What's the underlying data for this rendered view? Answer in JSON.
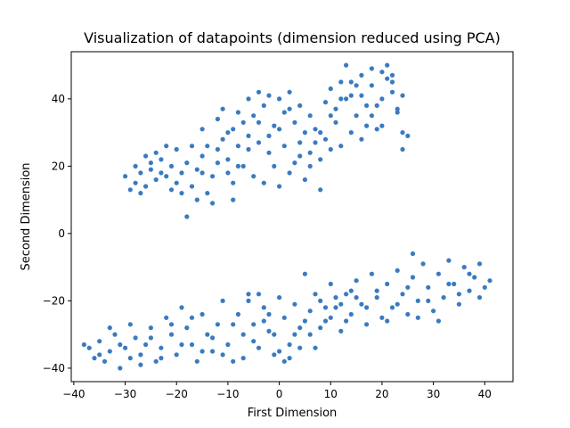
{
  "chart_data": {
    "type": "scatter",
    "title": "Visualization of datapoints (dimension reduced using PCA)",
    "xlabel": "First Dimension",
    "ylabel": "Second Dimension",
    "xlim": [
      -40.5,
      45.5
    ],
    "ylim": [
      -44,
      54
    ],
    "xticks": [
      -40,
      -30,
      -20,
      -10,
      0,
      10,
      20,
      30,
      40
    ],
    "yticks": [
      -40,
      -20,
      0,
      20,
      40
    ],
    "xtick_labels": [
      "−40",
      "−30",
      "−20",
      "−10",
      "0",
      "10",
      "20",
      "30",
      "40"
    ],
    "ytick_labels": [
      "−40",
      "−20",
      "0",
      "20",
      "40"
    ],
    "grid": false,
    "marker_color": "#3a7bbf",
    "series": [
      {
        "values": [
          [
            -30,
            17
          ],
          [
            -29,
            13
          ],
          [
            -28,
            15
          ],
          [
            -27,
            18
          ],
          [
            -26,
            14
          ],
          [
            -25,
            19
          ],
          [
            -24,
            16
          ],
          [
            -23,
            22
          ],
          [
            -22,
            17
          ],
          [
            -21,
            20
          ],
          [
            -20,
            15
          ],
          [
            -19,
            18
          ],
          [
            -18,
            21
          ],
          [
            -17,
            14
          ],
          [
            -16,
            19
          ],
          [
            -15,
            23
          ],
          [
            -14,
            12
          ],
          [
            -13,
            17
          ],
          [
            -12,
            25
          ],
          [
            -11,
            28
          ],
          [
            -10,
            22
          ],
          [
            -9,
            31
          ],
          [
            -8,
            26
          ],
          [
            -7,
            33
          ],
          [
            -6,
            29
          ],
          [
            -5,
            35
          ],
          [
            -4,
            27
          ],
          [
            -3,
            38
          ],
          [
            -2,
            24
          ],
          [
            -1,
            32
          ],
          [
            0,
            40
          ],
          [
            1,
            36
          ],
          [
            2,
            42
          ],
          [
            3,
            33
          ],
          [
            4,
            38
          ],
          [
            5,
            30
          ],
          [
            6,
            35
          ],
          [
            7,
            27
          ],
          [
            8,
            22
          ],
          [
            9,
            39
          ],
          [
            10,
            43
          ],
          [
            11,
            37
          ],
          [
            12,
            45
          ],
          [
            13,
            50
          ],
          [
            14,
            41
          ],
          [
            15,
            35
          ],
          [
            16,
            47
          ],
          [
            17,
            32
          ],
          [
            18,
            44
          ],
          [
            19,
            38
          ],
          [
            20,
            48
          ],
          [
            21,
            46
          ],
          [
            22,
            42
          ],
          [
            23,
            36
          ],
          [
            24,
            30
          ],
          [
            25,
            29
          ],
          [
            -28,
            20
          ],
          [
            -26,
            23
          ],
          [
            -24,
            24
          ],
          [
            -22,
            26
          ],
          [
            -20,
            25
          ],
          [
            -19,
            12
          ],
          [
            -18,
            5
          ],
          [
            -16,
            10
          ],
          [
            -15,
            31
          ],
          [
            -14,
            26
          ],
          [
            -13,
            9
          ],
          [
            -12,
            21
          ],
          [
            -11,
            37
          ],
          [
            -10,
            18
          ],
          [
            -9,
            15
          ],
          [
            -8,
            36
          ],
          [
            -7,
            20
          ],
          [
            -6,
            40
          ],
          [
            -5,
            17
          ],
          [
            -4,
            33
          ],
          [
            -3,
            15
          ],
          [
            -2,
            41
          ],
          [
            -1,
            20
          ],
          [
            0,
            14
          ],
          [
            1,
            26
          ],
          [
            2,
            18
          ],
          [
            3,
            21
          ],
          [
            4,
            27
          ],
          [
            5,
            16
          ],
          [
            6,
            24
          ],
          [
            7,
            31
          ],
          [
            8,
            13
          ],
          [
            9,
            28
          ],
          [
            10,
            25
          ],
          [
            11,
            33
          ],
          [
            12,
            26
          ],
          [
            13,
            40
          ],
          [
            14,
            30
          ],
          [
            15,
            44
          ],
          [
            16,
            28
          ],
          [
            17,
            38
          ],
          [
            18,
            49
          ],
          [
            19,
            31
          ],
          [
            20,
            40
          ],
          [
            21,
            50
          ],
          [
            22,
            45
          ],
          [
            23,
            37
          ],
          [
            24,
            41
          ],
          [
            -27,
            12
          ],
          [
            -25,
            21
          ],
          [
            -23,
            18
          ],
          [
            -21,
            13
          ],
          [
            -17,
            26
          ],
          [
            -15,
            18
          ],
          [
            -12,
            34
          ],
          [
            -10,
            30
          ],
          [
            -8,
            20
          ],
          [
            -6,
            25
          ],
          [
            -4,
            42
          ],
          [
            -2,
            29
          ],
          [
            0,
            31
          ],
          [
            2,
            37
          ],
          [
            4,
            23
          ],
          [
            6,
            20
          ],
          [
            8,
            30
          ],
          [
            10,
            35
          ],
          [
            12,
            40
          ],
          [
            14,
            45
          ],
          [
            16,
            41
          ],
          [
            18,
            35
          ],
          [
            20,
            32
          ],
          [
            22,
            47
          ],
          [
            24,
            25
          ],
          [
            -9,
            10
          ],
          [
            -37,
            -34
          ],
          [
            -36,
            -37
          ],
          [
            -35,
            -32
          ],
          [
            -34,
            -38
          ],
          [
            -33,
            -35
          ],
          [
            -32,
            -30
          ],
          [
            -31,
            -40
          ],
          [
            -30,
            -34
          ],
          [
            -29,
            -37
          ],
          [
            -28,
            -31
          ],
          [
            -27,
            -36
          ],
          [
            -26,
            -33
          ],
          [
            -25,
            -28
          ],
          [
            -24,
            -38
          ],
          [
            -23,
            -34
          ],
          [
            -22,
            -25
          ],
          [
            -21,
            -30
          ],
          [
            -20,
            -36
          ],
          [
            -19,
            -22
          ],
          [
            -18,
            -28
          ],
          [
            -17,
            -33
          ],
          [
            -16,
            -38
          ],
          [
            -15,
            -24
          ],
          [
            -14,
            -30
          ],
          [
            -13,
            -35
          ],
          [
            -12,
            -27
          ],
          [
            -11,
            -20
          ],
          [
            -10,
            -33
          ],
          [
            -9,
            -38
          ],
          [
            -8,
            -24
          ],
          [
            -7,
            -30
          ],
          [
            -6,
            -18
          ],
          [
            -5,
            -27
          ],
          [
            -4,
            -34
          ],
          [
            -3,
            -22
          ],
          [
            -2,
            -29
          ],
          [
            -1,
            -36
          ],
          [
            0,
            -19
          ],
          [
            1,
            -25
          ],
          [
            2,
            -33
          ],
          [
            3,
            -21
          ],
          [
            4,
            -28
          ],
          [
            5,
            -12
          ],
          [
            6,
            -23
          ],
          [
            7,
            -34
          ],
          [
            8,
            -20
          ],
          [
            9,
            -26
          ],
          [
            10,
            -15
          ],
          [
            11,
            -22
          ],
          [
            12,
            -29
          ],
          [
            13,
            -18
          ],
          [
            14,
            -24
          ],
          [
            15,
            -14
          ],
          [
            16,
            -21
          ],
          [
            17,
            -27
          ],
          [
            18,
            -12
          ],
          [
            19,
            -19
          ],
          [
            20,
            -25
          ],
          [
            21,
            -15
          ],
          [
            22,
            -22
          ],
          [
            23,
            -11
          ],
          [
            24,
            -18
          ],
          [
            25,
            -24
          ],
          [
            26,
            -13
          ],
          [
            27,
            -20
          ],
          [
            28,
            -9
          ],
          [
            29,
            -16
          ],
          [
            30,
            -23
          ],
          [
            31,
            -12
          ],
          [
            32,
            -19
          ],
          [
            33,
            -8
          ],
          [
            34,
            -15
          ],
          [
            35,
            -21
          ],
          [
            36,
            -10
          ],
          [
            37,
            -17
          ],
          [
            38,
            -13
          ],
          [
            39,
            -9
          ],
          [
            40,
            -16
          ],
          [
            41,
            -14
          ],
          [
            26,
            -6
          ],
          [
            -38,
            -33
          ],
          [
            -35,
            -36
          ],
          [
            -33,
            -28
          ],
          [
            -31,
            -33
          ],
          [
            -29,
            -27
          ],
          [
            -27,
            -39
          ],
          [
            -25,
            -31
          ],
          [
            -23,
            -37
          ],
          [
            -21,
            -27
          ],
          [
            -19,
            -33
          ],
          [
            -17,
            -25
          ],
          [
            -15,
            -35
          ],
          [
            -13,
            -31
          ],
          [
            -11,
            -36
          ],
          [
            -9,
            -27
          ],
          [
            -7,
            -37
          ],
          [
            -5,
            -32
          ],
          [
            -3,
            -26
          ],
          [
            -1,
            -30
          ],
          [
            1,
            -38
          ],
          [
            3,
            -30
          ],
          [
            5,
            -26
          ],
          [
            7,
            -18
          ],
          [
            9,
            -22
          ],
          [
            11,
            -19
          ],
          [
            13,
            -26
          ],
          [
            15,
            -19
          ],
          [
            17,
            -22
          ],
          [
            19,
            -17
          ],
          [
            21,
            -26
          ],
          [
            23,
            -21
          ],
          [
            25,
            -16
          ],
          [
            27,
            -25
          ],
          [
            29,
            -20
          ],
          [
            31,
            -26
          ],
          [
            33,
            -15
          ],
          [
            35,
            -18
          ],
          [
            37,
            -12
          ],
          [
            39,
            -19
          ],
          [
            -6,
            -20
          ],
          [
            -4,
            -18
          ],
          [
            -2,
            -24
          ],
          [
            0,
            -35
          ],
          [
            2,
            -37
          ],
          [
            4,
            -34
          ],
          [
            6,
            -30
          ],
          [
            8,
            -28
          ],
          [
            10,
            -25
          ],
          [
            12,
            -21
          ],
          [
            14,
            -17
          ]
        ]
      }
    ]
  }
}
